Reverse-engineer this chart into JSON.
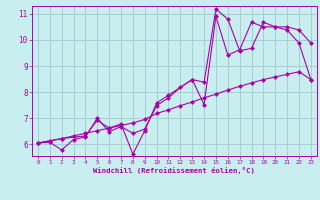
{
  "title": "",
  "xlabel": "Windchill (Refroidissement éolien,°C)",
  "ylabel": "",
  "xlim": [
    -0.5,
    23.5
  ],
  "ylim": [
    5.55,
    11.3
  ],
  "xticks": [
    0,
    1,
    2,
    3,
    4,
    5,
    6,
    7,
    8,
    9,
    10,
    11,
    12,
    13,
    14,
    15,
    16,
    17,
    18,
    19,
    20,
    21,
    22,
    23
  ],
  "yticks": [
    6,
    7,
    8,
    9,
    10,
    11
  ],
  "bg_color": "#c8eef0",
  "line_color": "#aa00aa",
  "grid_color": "#a0c8d0",
  "line1_x": [
    0,
    1,
    2,
    3,
    4,
    5,
    6,
    7,
    8,
    9,
    10,
    11,
    12,
    13,
    14,
    15,
    16,
    17,
    18,
    19,
    20,
    21,
    22,
    23
  ],
  "line1_y": [
    6.05,
    6.08,
    5.78,
    6.18,
    6.28,
    7.0,
    6.48,
    6.68,
    6.42,
    6.58,
    7.48,
    7.78,
    8.18,
    8.48,
    8.38,
    11.18,
    10.8,
    9.58,
    9.68,
    10.68,
    10.5,
    10.5,
    10.38,
    9.88
  ],
  "line2_x": [
    0,
    1,
    2,
    3,
    4,
    5,
    6,
    7,
    8,
    9,
    10,
    11,
    12,
    13,
    14,
    15,
    16,
    17,
    18,
    19,
    20,
    21,
    22,
    23
  ],
  "line2_y": [
    6.05,
    6.12,
    6.22,
    6.32,
    6.42,
    6.52,
    6.62,
    6.72,
    6.82,
    6.95,
    7.18,
    7.32,
    7.48,
    7.62,
    7.78,
    7.92,
    8.08,
    8.22,
    8.35,
    8.48,
    8.58,
    8.68,
    8.78,
    8.48
  ],
  "line3_x": [
    0,
    2,
    4,
    5,
    6,
    7,
    8,
    9,
    10,
    11,
    13,
    14,
    15,
    16,
    17,
    18,
    19,
    20,
    21,
    22,
    23
  ],
  "line3_y": [
    6.05,
    6.22,
    6.32,
    6.92,
    6.62,
    6.78,
    5.62,
    6.52,
    7.58,
    7.88,
    8.48,
    7.52,
    10.9,
    9.42,
    9.62,
    10.68,
    10.5,
    10.5,
    10.38,
    9.88,
    8.48
  ]
}
